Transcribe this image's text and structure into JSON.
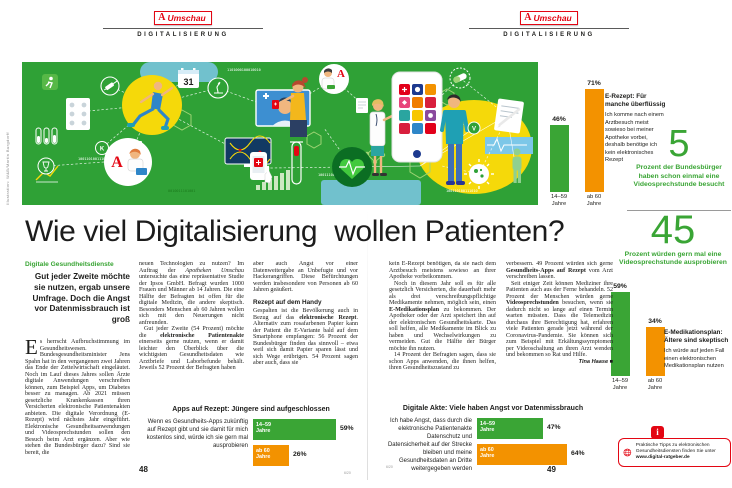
{
  "brand": {
    "logo_a": "A",
    "logo_word": "Umschau",
    "section": "DIGITALISIERUNG"
  },
  "headline": {
    "left": "Wie viel Digitalisierung",
    "right": "wollen Patienten?"
  },
  "intro": {
    "kicker": "Digitale Gesundheitsdienste",
    "deck": "Gut jeder Zweite möchte sie nutzen, ergab unsere Umfrage. Doch die Angst vor Datenmissbrauch ist groß"
  },
  "article": {
    "dropcap": "E",
    "col1": "s herrscht Aufbruchstimmung im Gesundheitswesen. Bundesgesundheitsminister Jens Spahn hat in den vergangenen zwei Jahren das Ende der Zettelwirtschaft eingeläutet. Noch im Lauf dieses Jahres sollen Ärzte digitale Anwendungen verschreiben können, zum Beispiel Apps, um Diabetes besser zu managen. Ab 2021 müssen gesetzliche Krankenkassen ihren Versicherten elektronische Patientenakten anbieten. Die digitale Verordnung (E-Rezept) wird nächstes Jahr eingeführt. Elektronische Gesundheitsanwendungen und Videosprechstunden sollen den Besuch beim Arzt ergänzen. Aber wie stehen die Bundesbürger dazu? Sind sie bereit, die",
    "col2": [
      "neuen Technologien zu nutzen? Im Auftrag der *Apotheken Umschau* untersuchte das eine repräsentative Studie der Ipsos GmbH. Befragt wurden 1000 Frauen und Männer ab 14 Jahren. Die eine Hälfte der Befragten ist offen für die digitale Medizin, die andere skeptisch. Besonders Menschen ab 60 Jahren wollen sich mit den Neuerungen nicht anfreunden.",
      "Gut jeder Zweite (54 Prozent) möchte die **elektronische Patientenakte** einerseits gerne nutzen, wenn er damit leichter den Überblick über die wichtigsten Gesundheitsdaten wie Arztbriefe und Laborbefunde behält. Jeweils 52 Prozent der Befragten haben"
    ],
    "col3": [
      "aber auch Angst vor einer Datenweitergabe an Unbefugte und vor Hackerangriffen. Diese Befürchtungen werden insbesondere von Personen ab 60 Jahren geäußert."
    ],
    "subhead": "Rezept auf dem Handy",
    "col3b": [
      "Gespalten ist die Bevölkerung auch in Bezug auf das **elektronische Rezept**. Alternativ zum rosafarbenen Papier kann der Patient die E-Variante bald auf dem Smartphone empfangen: 56 Prozent der Bundesbürger finden das sinnvoll – etwa weil sich damit Papier sparen lässt und sich Wege erübrigen. 54 Prozent sagen aber auch, dass sie"
    ],
    "col4": [
      "kein E-Rezept benötigen, da sie nach dem Arztbesuch meistens sowieso an ihrer Apotheke vorbeikommen.",
      "Noch in diesem Jahr soll es für alle gesetzlich Versicherten, die dauerhaft mehr als drei verschreibungspflichtige Medikamente nehmen, möglich sein, einen **E-Medikationsplan** zu bekommen. Der Apotheker oder der Arzt speichert ihn auf der elektronischen Gesundheitskarte. Das soll helfen, alle Medikamente im Blick zu haben und Wechselwirkungen zu vermeiden. Gut die Hälfte der Bürger möchte ihn nutzen.",
      "14 Prozent der Befragten sagen, dass sie schon Apps anwenden, die ihnen helfen, ihren Gesundheitszustand zu"
    ],
    "col5": [
      "verbessern. 49 Prozent würden sich gerne **Gesundheits-Apps auf Rezept** vom Arzt verschreiben lassen.",
      "Seit einiger Zeit können Mediziner ihre Patienten auch aus der Ferne behandeln. 52 Prozent der Menschen würden gerne **Videosprechstunden** besuchen, wenn sie dadurch nicht so lange auf einen Termin warten müssten. Dass die Telemedizin durchaus ihre Berechtigung hat, erfahren viele Patienten gerade jetzt während der Coronavirus-Pandemie. Sie können sich zum Beispiel mit Erkältungssymptomen per Videoschaltung an ihren Arzt wenden und bekommen so Rat und Hilfe."
    ],
    "byline": "Tina Haase ■"
  },
  "stats": [
    {
      "number": "5",
      "text": "Prozent der Bundesbürger haben schon einmal eine Videosprechstunde besucht"
    },
    {
      "number": "45",
      "text": "Prozent würden gern mal eine Videosprechstunde ausprobieren"
    }
  ],
  "chart_data": [
    {
      "type": "bar",
      "orientation": "vertical",
      "title": "E-Rezept: Für manche überflüssig",
      "statement": "Ich komme nach einem Arztbesuch meist sowieso bei meiner Apotheke vorbei, deshalb benötige ich kein elektronisches Rezept",
      "categories": [
        "14–59 Jahre",
        "ab 60 Jahre"
      ],
      "values": [
        46,
        71
      ],
      "unit": "%",
      "colors": [
        "#3aa535",
        "#f39200"
      ],
      "ylim": [
        0,
        100
      ],
      "grid": false,
      "legend": "none"
    },
    {
      "type": "bar",
      "orientation": "vertical",
      "title": "E-Medikationsplan: Ältere sind skeptisch",
      "statement": "Ich würde auf jeden Fall einen elektronischen Medikationsplan nutzen",
      "categories": [
        "14–59 Jahre",
        "ab 60 Jahre"
      ],
      "values": [
        59,
        34
      ],
      "unit": "%",
      "colors": [
        "#3aa535",
        "#f39200"
      ],
      "ylim": [
        0,
        100
      ],
      "grid": false,
      "legend": "none"
    },
    {
      "type": "bar",
      "orientation": "horizontal",
      "title": "Apps auf Rezept: Jüngere sind aufgeschlossen",
      "statement": "Wenn es Gesundheits-Apps zukünftig auf Rezept gibt und sie damit für mich kostenlos sind, würde ich sie gern mal ausprobieren",
      "categories": [
        "14–59 Jahre",
        "ab 60 Jahre"
      ],
      "values": [
        59,
        26
      ],
      "unit": "%",
      "colors": [
        "#3aa535",
        "#f39200"
      ],
      "ylim": [
        0,
        100
      ],
      "grid": false,
      "legend": "none"
    },
    {
      "type": "bar",
      "orientation": "horizontal",
      "title": "Digitale Akte: Viele haben Angst vor Datenmissbrauch",
      "statement": "Ich habe Angst, dass durch die elektronische Patientenakte Datenschutz und Datensicherheit auf der Strecke bleiben und meine Gesundheitsdaten an Dritte weitergegeben werden",
      "categories": [
        "14–59 Jahre",
        "ab 60 Jahre"
      ],
      "values": [
        47,
        64
      ],
      "unit": "%",
      "colors": [
        "#3aa535",
        "#f39200"
      ],
      "ylim": [
        0,
        100
      ],
      "grid": false,
      "legend": "none"
    }
  ],
  "infobox": {
    "icon": "i",
    "text": "Praktische Tipps zu elektronischen Gesundheitsdiensten finden Sie unter",
    "link": "www.digital-ratgeber.de"
  },
  "footer": {
    "page_left": "48",
    "page_right": "49",
    "folio_left": "6/20",
    "folio_right": "6/20"
  },
  "credit": "Illustration: W&B/Martin Burgdorff",
  "illustration": {
    "calendar_day": "31",
    "pharmacy_letter": "A",
    "node_k": "K",
    "node_v": "V",
    "binary_1": "1101000100010010",
    "binary_2": "10011010011101",
    "binary_3": "1001110010011101",
    "binary_4": "100110100111010",
    "binary_5": "0010011101001"
  },
  "colors": {
    "green": "#3aa535",
    "orange": "#f39200",
    "brand_red": "#e30613",
    "banner_green": "#2fa136"
  }
}
